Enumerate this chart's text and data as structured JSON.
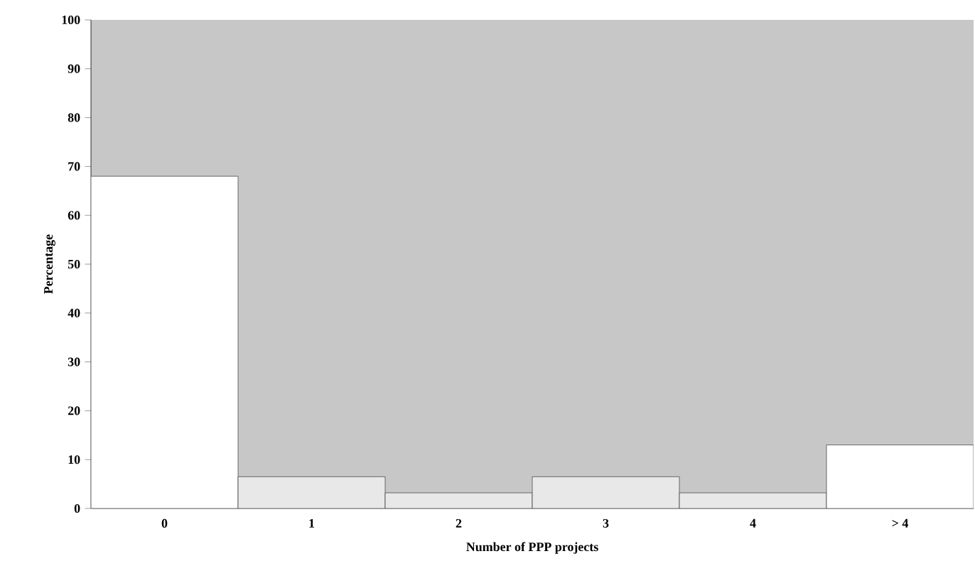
{
  "chart_data": {
    "type": "bar",
    "xlabel": "Number of PPP projects",
    "ylabel": "Percentage",
    "categories": [
      "0",
      "1",
      "2",
      "3",
      "4",
      "> 4"
    ],
    "values": [
      68,
      6.5,
      3.2,
      6.5,
      3.2,
      13
    ],
    "colors": [
      "#ffffff",
      "#e8e8e8",
      "#e8e8e8",
      "#e8e8e8",
      "#e8e8e8",
      "#ffffff"
    ],
    "ylim": [
      0,
      100
    ],
    "yticks": [
      0,
      10,
      20,
      30,
      40,
      50,
      60,
      70,
      80,
      90,
      100
    ]
  }
}
